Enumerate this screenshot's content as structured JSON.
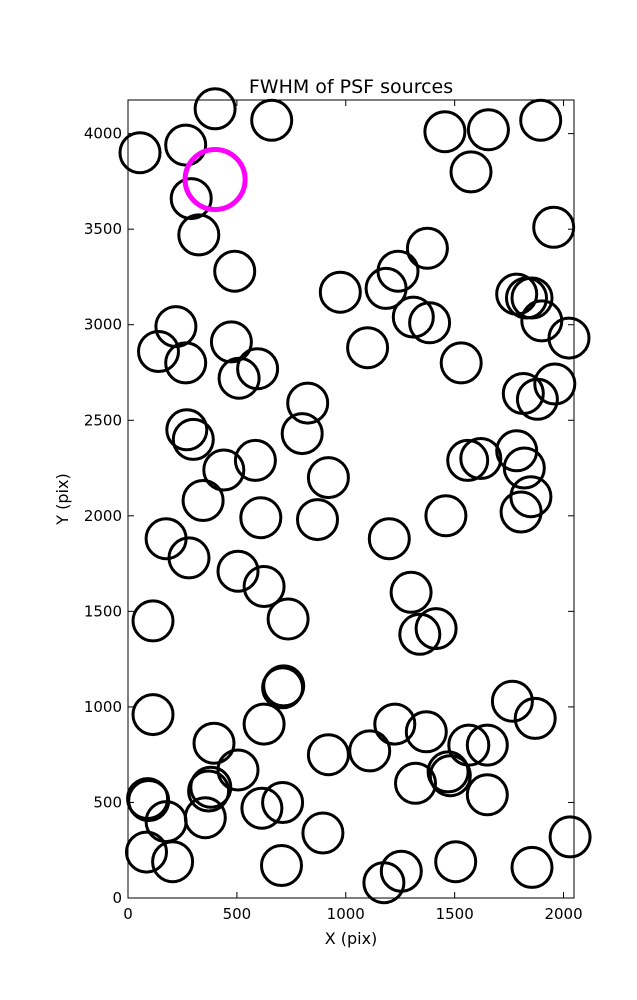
{
  "chart_data": {
    "type": "scatter",
    "title": "FWHM of PSF sources",
    "xlabel": "X (pix)",
    "ylabel": "Y (pix)",
    "xlim": [
      0,
      2048
    ],
    "ylim": [
      0,
      4176
    ],
    "xticks": [
      0,
      500,
      1000,
      1500,
      2000
    ],
    "yticks": [
      0,
      500,
      1000,
      1500,
      2000,
      2500,
      3000,
      3500,
      4000
    ],
    "grid": false,
    "marker": "open-circle",
    "marker_color": "#000000",
    "highlight_color": "#ff00ff",
    "points": [
      {
        "x": 55,
        "y": 3900
      },
      {
        "x": 265,
        "y": 3940
      },
      {
        "x": 400,
        "y": 4130
      },
      {
        "x": 660,
        "y": 4070
      },
      {
        "x": 290,
        "y": 3660
      },
      {
        "x": 325,
        "y": 3470
      },
      {
        "x": 490,
        "y": 3280
      },
      {
        "x": 220,
        "y": 2990
      },
      {
        "x": 140,
        "y": 2860
      },
      {
        "x": 265,
        "y": 2800
      },
      {
        "x": 475,
        "y": 2910
      },
      {
        "x": 510,
        "y": 2720
      },
      {
        "x": 595,
        "y": 2770
      },
      {
        "x": 270,
        "y": 2450
      },
      {
        "x": 300,
        "y": 2400
      },
      {
        "x": 440,
        "y": 2240
      },
      {
        "x": 585,
        "y": 2290
      },
      {
        "x": 345,
        "y": 2080
      },
      {
        "x": 610,
        "y": 1990
      },
      {
        "x": 175,
        "y": 1880
      },
      {
        "x": 280,
        "y": 1780
      },
      {
        "x": 505,
        "y": 1710
      },
      {
        "x": 625,
        "y": 1630
      },
      {
        "x": 735,
        "y": 1460
      },
      {
        "x": 115,
        "y": 1450
      },
      {
        "x": 800,
        "y": 2430
      },
      {
        "x": 825,
        "y": 2590
      },
      {
        "x": 920,
        "y": 2200
      },
      {
        "x": 870,
        "y": 1980
      },
      {
        "x": 975,
        "y": 3170
      },
      {
        "x": 1100,
        "y": 2880
      },
      {
        "x": 1185,
        "y": 3190
      },
      {
        "x": 1240,
        "y": 3280
      },
      {
        "x": 1375,
        "y": 3400
      },
      {
        "x": 1310,
        "y": 3040
      },
      {
        "x": 1385,
        "y": 3010
      },
      {
        "x": 1530,
        "y": 2800
      },
      {
        "x": 1455,
        "y": 4010
      },
      {
        "x": 1655,
        "y": 4020
      },
      {
        "x": 1575,
        "y": 3800
      },
      {
        "x": 1895,
        "y": 4070
      },
      {
        "x": 1955,
        "y": 3510
      },
      {
        "x": 1785,
        "y": 3160
      },
      {
        "x": 1830,
        "y": 3140
      },
      {
        "x": 1855,
        "y": 3140
      },
      {
        "x": 1900,
        "y": 3020
      },
      {
        "x": 2025,
        "y": 2930
      },
      {
        "x": 1815,
        "y": 2640
      },
      {
        "x": 1880,
        "y": 2610
      },
      {
        "x": 1960,
        "y": 2690
      },
      {
        "x": 1560,
        "y": 2290
      },
      {
        "x": 1620,
        "y": 2300
      },
      {
        "x": 1785,
        "y": 2340
      },
      {
        "x": 1820,
        "y": 2250
      },
      {
        "x": 1850,
        "y": 2100
      },
      {
        "x": 1805,
        "y": 2020
      },
      {
        "x": 1460,
        "y": 2000
      },
      {
        "x": 1200,
        "y": 1880
      },
      {
        "x": 1300,
        "y": 1600
      },
      {
        "x": 1415,
        "y": 1410
      },
      {
        "x": 1340,
        "y": 1380
      },
      {
        "x": 715,
        "y": 1110
      },
      {
        "x": 710,
        "y": 1100
      },
      {
        "x": 115,
        "y": 960
      },
      {
        "x": 625,
        "y": 910
      },
      {
        "x": 395,
        "y": 810
      },
      {
        "x": 505,
        "y": 670
      },
      {
        "x": 380,
        "y": 580
      },
      {
        "x": 370,
        "y": 560
      },
      {
        "x": 90,
        "y": 520
      },
      {
        "x": 95,
        "y": 510
      },
      {
        "x": 175,
        "y": 400
      },
      {
        "x": 355,
        "y": 420
      },
      {
        "x": 615,
        "y": 470
      },
      {
        "x": 710,
        "y": 500
      },
      {
        "x": 85,
        "y": 240
      },
      {
        "x": 205,
        "y": 190
      },
      {
        "x": 705,
        "y": 170
      },
      {
        "x": 895,
        "y": 340
      },
      {
        "x": 920,
        "y": 750
      },
      {
        "x": 1110,
        "y": 770
      },
      {
        "x": 1225,
        "y": 910
      },
      {
        "x": 1370,
        "y": 870
      },
      {
        "x": 1320,
        "y": 600
      },
      {
        "x": 1470,
        "y": 660
      },
      {
        "x": 1480,
        "y": 640
      },
      {
        "x": 1565,
        "y": 800
      },
      {
        "x": 1650,
        "y": 800
      },
      {
        "x": 1650,
        "y": 540
      },
      {
        "x": 1765,
        "y": 1030
      },
      {
        "x": 1870,
        "y": 940
      },
      {
        "x": 1505,
        "y": 190
      },
      {
        "x": 1855,
        "y": 160
      },
      {
        "x": 2030,
        "y": 320
      },
      {
        "x": 1175,
        "y": 80
      },
      {
        "x": 1255,
        "y": 140
      }
    ],
    "highlight_points": [
      {
        "x": 400,
        "y": 3760
      }
    ]
  }
}
